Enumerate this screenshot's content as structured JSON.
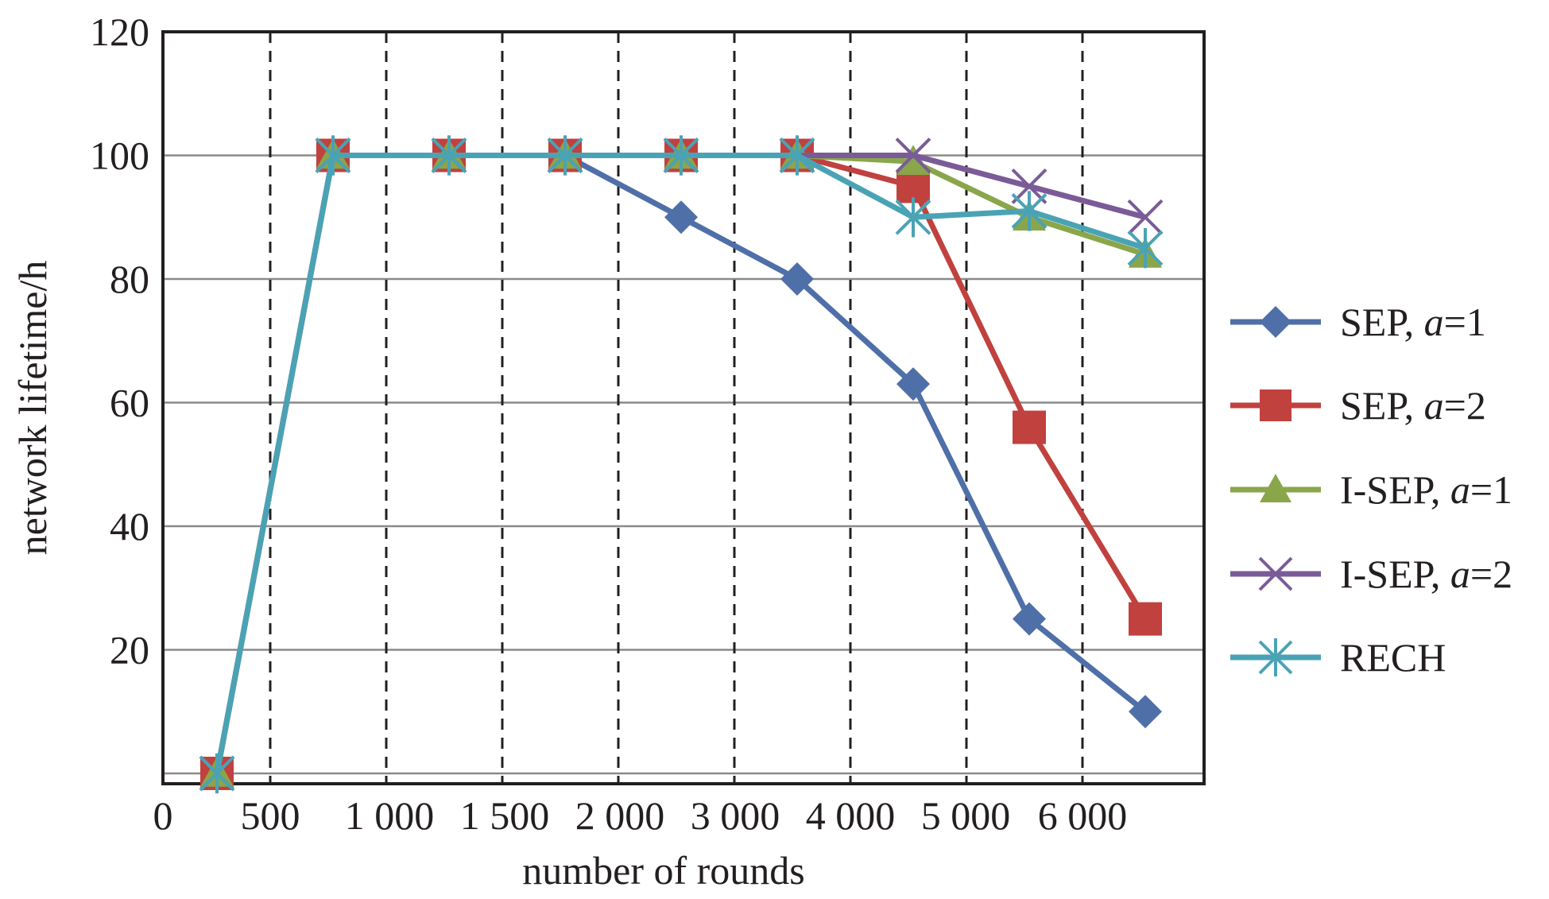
{
  "chart_data": {
    "type": "line",
    "xlabel": "number of rounds",
    "ylabel": "network lifetime/h",
    "x_tick_labels": [
      "0",
      "500",
      "1 000",
      "1 500",
      "2 000",
      "3 000",
      "4 000",
      "5 000",
      "6 000"
    ],
    "y_tick_labels": [
      "20",
      "40",
      "60",
      "80",
      "100",
      "120"
    ],
    "ylim": [
      0,
      120
    ],
    "grid": "horizontal solid, vertical dashed",
    "legend_position": "right",
    "categories": [
      "",
      "500",
      "1 000",
      "1 500",
      "2 000",
      "3 000",
      "4 000",
      "5 000",
      "6 000"
    ],
    "series": [
      {
        "name": "SEP, a=1",
        "legend_prefix": "SEP, ",
        "legend_var": "a",
        "legend_suffix": "=1",
        "color": "#4f6fa8",
        "marker": "diamond",
        "values": [
          0,
          100,
          100,
          100,
          90,
          80,
          63,
          25,
          10
        ]
      },
      {
        "name": "SEP, a=2",
        "legend_prefix": "SEP, ",
        "legend_var": "a",
        "legend_suffix": "=2",
        "color": "#c0413e",
        "marker": "square",
        "values": [
          0,
          100,
          100,
          100,
          100,
          100,
          95,
          56,
          25
        ]
      },
      {
        "name": "I-SEP, a=1",
        "legend_prefix": "I-SEP, ",
        "legend_var": "a",
        "legend_suffix": "=1",
        "color": "#89a64a",
        "marker": "triangle",
        "values": [
          0,
          100,
          100,
          100,
          100,
          100,
          99,
          90,
          84
        ]
      },
      {
        "name": "I-SEP, a=2",
        "legend_prefix": "I-SEP, ",
        "legend_var": "a",
        "legend_suffix": "=2",
        "color": "#7a5b97",
        "marker": "x",
        "values": [
          0,
          100,
          100,
          100,
          100,
          100,
          100,
          95,
          90
        ]
      },
      {
        "name": "RECH",
        "legend_prefix": "RECH",
        "legend_var": "",
        "legend_suffix": "",
        "color": "#4aa3b5",
        "marker": "star",
        "values": [
          0,
          100,
          100,
          100,
          100,
          100,
          90,
          91,
          85
        ]
      }
    ]
  }
}
